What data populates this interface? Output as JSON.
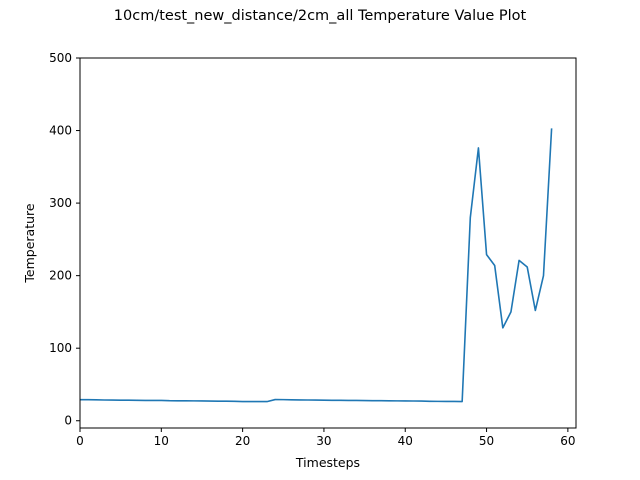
{
  "chart_data": {
    "type": "line",
    "title": "10cm/test_new_distance/2cm_all Temperature Value Plot",
    "xlabel": "Timesteps",
    "ylabel": "Temperature",
    "xlim": [
      0,
      61
    ],
    "ylim": [
      -10,
      500
    ],
    "xticks": [
      0,
      10,
      20,
      30,
      40,
      50,
      60
    ],
    "yticks": [
      0,
      100,
      200,
      300,
      400,
      500
    ],
    "grid": false,
    "series": [
      {
        "color": "#1f77b4",
        "x": [
          0,
          1,
          2,
          3,
          4,
          5,
          6,
          7,
          8,
          9,
          10,
          11,
          12,
          13,
          14,
          15,
          16,
          17,
          18,
          19,
          20,
          21,
          22,
          23,
          24,
          25,
          26,
          27,
          28,
          29,
          30,
          31,
          32,
          33,
          34,
          35,
          36,
          37,
          38,
          39,
          40,
          41,
          42,
          43,
          44,
          45,
          46,
          47,
          48,
          49,
          50,
          51,
          52,
          53,
          54,
          55,
          56,
          57,
          58
        ],
        "y": [
          29,
          29,
          28.8,
          28.6,
          28.5,
          28.4,
          28.3,
          28.1,
          28,
          28,
          28,
          27.6,
          27.5,
          27.5,
          27.4,
          27.3,
          27.1,
          27,
          27,
          26.8,
          26.5,
          26.4,
          26.4,
          26.4,
          29.2,
          29.1,
          28.9,
          28.7,
          28.6,
          28.5,
          28.3,
          28.2,
          28.1,
          28,
          28,
          27.8,
          27.7,
          27.6,
          27.5,
          27.4,
          27.3,
          27.2,
          27.1,
          26.8,
          26.7,
          26.6,
          26.6,
          26.5,
          280,
          376,
          229,
          214,
          128,
          150,
          221,
          212,
          152,
          200,
          403
        ]
      }
    ]
  }
}
